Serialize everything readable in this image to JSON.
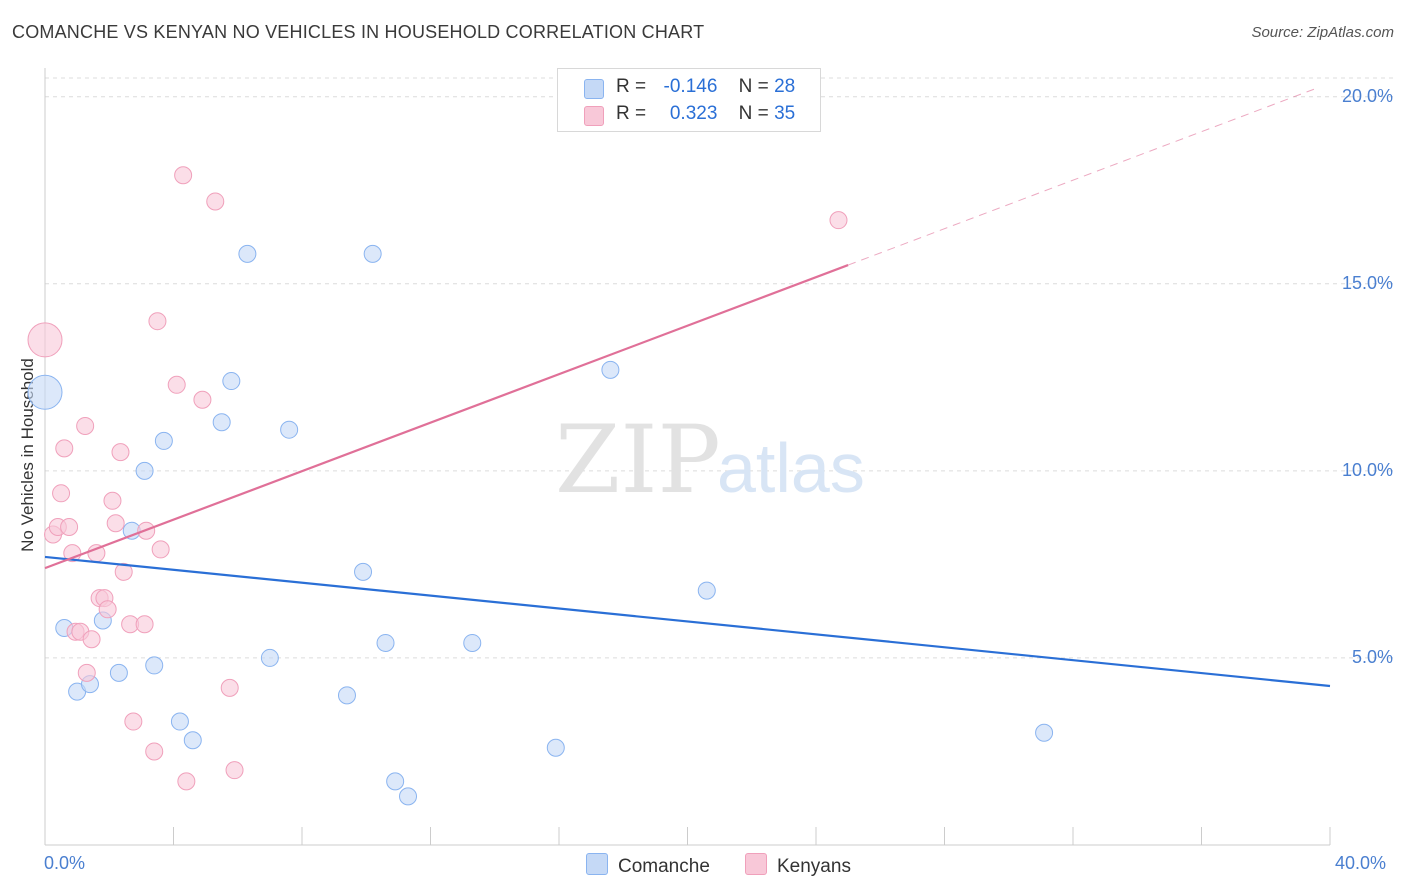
{
  "chart_data": {
    "type": "scatter",
    "title": "COMANCHE VS KENYAN NO VEHICLES IN HOUSEHOLD CORRELATION CHART",
    "source": "Source: ZipAtlas.com",
    "xlabel": "",
    "ylabel": "No Vehicles in Household",
    "xlim": [
      0,
      40
    ],
    "ylim": [
      0,
      20.5
    ],
    "x_tick_labels": [
      "0.0%",
      "40.0%"
    ],
    "y_ticks": [
      5,
      10,
      15,
      20
    ],
    "y_tick_labels": [
      "5.0%",
      "10.0%",
      "15.0%",
      "20.0%"
    ],
    "watermark": "ZIPatlas",
    "legend": {
      "rows": [
        {
          "r_label": "R =",
          "r_value": "-0.146",
          "n_label": "N =",
          "n_value": "28"
        },
        {
          "r_label": "R =",
          "r_value": "0.323",
          "n_label": "N =",
          "n_value": "35"
        }
      ]
    },
    "series": [
      {
        "name": "Comanche",
        "color": "#8ab4f0",
        "fill": "#c5d9f6",
        "line_color": "#2a6fd6",
        "trend": {
          "x0": 0,
          "y0": 7.7,
          "x1": 40,
          "y1": 4.25
        },
        "points": [
          {
            "x": 0.0,
            "y": 12.1,
            "big": true
          },
          {
            "x": 0.6,
            "y": 5.8
          },
          {
            "x": 1.0,
            "y": 4.1
          },
          {
            "x": 1.4,
            "y": 4.3
          },
          {
            "x": 1.8,
            "y": 6.0
          },
          {
            "x": 2.3,
            "y": 4.6
          },
          {
            "x": 2.7,
            "y": 8.4
          },
          {
            "x": 3.1,
            "y": 10.0
          },
          {
            "x": 3.4,
            "y": 4.8
          },
          {
            "x": 3.7,
            "y": 10.8
          },
          {
            "x": 4.2,
            "y": 3.3
          },
          {
            "x": 4.6,
            "y": 2.8
          },
          {
            "x": 5.5,
            "y": 11.3
          },
          {
            "x": 5.8,
            "y": 12.4
          },
          {
            "x": 6.3,
            "y": 15.8
          },
          {
            "x": 7.0,
            "y": 5.0
          },
          {
            "x": 7.6,
            "y": 11.1
          },
          {
            "x": 9.4,
            "y": 4.0
          },
          {
            "x": 9.9,
            "y": 7.3
          },
          {
            "x": 10.2,
            "y": 15.8
          },
          {
            "x": 10.6,
            "y": 5.4
          },
          {
            "x": 10.9,
            "y": 1.7
          },
          {
            "x": 11.3,
            "y": 1.3
          },
          {
            "x": 13.3,
            "y": 5.4
          },
          {
            "x": 15.9,
            "y": 2.6
          },
          {
            "x": 17.6,
            "y": 12.7
          },
          {
            "x": 20.6,
            "y": 6.8
          },
          {
            "x": 31.1,
            "y": 3.0
          }
        ]
      },
      {
        "name": "Kenyans",
        "color": "#f0a0bb",
        "fill": "#f8c8d8",
        "line_color": "#e07098",
        "trend": {
          "x0": 0,
          "y0": 7.4,
          "x1": 25,
          "y1": 15.5
        },
        "trend_dashed": {
          "x0": 25,
          "y0": 15.5,
          "x1": 39.5,
          "y1": 20.2
        },
        "points": [
          {
            "x": 0.0,
            "y": 13.5,
            "big": true
          },
          {
            "x": 0.25,
            "y": 8.3
          },
          {
            "x": 0.4,
            "y": 8.5
          },
          {
            "x": 0.5,
            "y": 9.4
          },
          {
            "x": 0.6,
            "y": 10.6
          },
          {
            "x": 0.75,
            "y": 8.5
          },
          {
            "x": 0.85,
            "y": 7.8
          },
          {
            "x": 0.95,
            "y": 5.7
          },
          {
            "x": 1.1,
            "y": 5.7
          },
          {
            "x": 1.25,
            "y": 11.2
          },
          {
            "x": 1.3,
            "y": 4.6
          },
          {
            "x": 1.45,
            "y": 5.5
          },
          {
            "x": 1.6,
            "y": 7.8
          },
          {
            "x": 1.7,
            "y": 6.6
          },
          {
            "x": 1.85,
            "y": 6.6
          },
          {
            "x": 1.95,
            "y": 6.3
          },
          {
            "x": 2.1,
            "y": 9.2
          },
          {
            "x": 2.2,
            "y": 8.6
          },
          {
            "x": 2.35,
            "y": 10.5
          },
          {
            "x": 2.45,
            "y": 7.3
          },
          {
            "x": 2.65,
            "y": 5.9
          },
          {
            "x": 2.75,
            "y": 3.3
          },
          {
            "x": 3.1,
            "y": 5.9
          },
          {
            "x": 3.15,
            "y": 8.4
          },
          {
            "x": 3.4,
            "y": 2.5
          },
          {
            "x": 3.5,
            "y": 14.0
          },
          {
            "x": 3.6,
            "y": 7.9
          },
          {
            "x": 4.1,
            "y": 12.3
          },
          {
            "x": 4.3,
            "y": 17.9
          },
          {
            "x": 4.4,
            "y": 1.7
          },
          {
            "x": 4.9,
            "y": 11.9
          },
          {
            "x": 5.3,
            "y": 17.2
          },
          {
            "x": 5.75,
            "y": 4.2
          },
          {
            "x": 5.9,
            "y": 2.0
          },
          {
            "x": 24.7,
            "y": 16.7
          }
        ]
      }
    ]
  }
}
